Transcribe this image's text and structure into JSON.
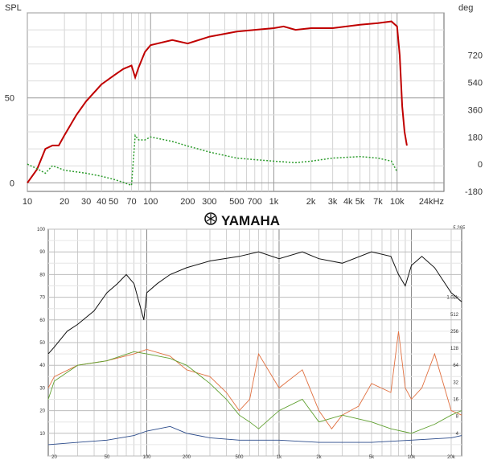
{
  "chart_data": [
    {
      "type": "line",
      "ylabel_left": "SPL",
      "ylabel_right": "deg",
      "x_scale": "log",
      "xlim": [
        10,
        24000
      ],
      "ylim_left": [
        -5,
        100
      ],
      "ylim_right": [
        -180,
        1000
      ],
      "grid": true,
      "x_ticks": [
        10,
        20,
        30,
        40,
        50,
        70,
        100,
        200,
        300,
        500,
        700,
        1000,
        2000,
        3000,
        4000,
        5000,
        7000,
        10000,
        24000
      ],
      "x_tick_labels": [
        "10",
        "20",
        "30",
        "40",
        "50",
        "70",
        "100",
        "200",
        "300",
        "500",
        "700",
        "1k",
        "2k",
        "3k",
        "4k",
        "5k",
        "7k",
        "10k",
        "24kHz"
      ],
      "y_left_ticks": [
        0,
        50
      ],
      "y_left_tick_labels": [
        "0",
        "50"
      ],
      "y_right_ticks": [
        -180,
        0,
        180,
        360,
        540,
        720
      ],
      "y_right_tick_labels": [
        "-180",
        "0",
        "180",
        "360",
        "540",
        "720"
      ],
      "series": [
        {
          "color": "#c00000",
          "axis": "left",
          "x": [
            10,
            12,
            14,
            16,
            18,
            20,
            25,
            30,
            40,
            50,
            60,
            70,
            75,
            80,
            90,
            100,
            150,
            200,
            300,
            500,
            700,
            1000,
            1200,
            1500,
            2000,
            3000,
            5000,
            7000,
            9000,
            10000,
            10500,
            11000,
            11500,
            12000
          ],
          "y": [
            0,
            8,
            20,
            22,
            22,
            28,
            40,
            48,
            58,
            63,
            67,
            69,
            62,
            68,
            77,
            81,
            84,
            82,
            86,
            89,
            90,
            91,
            92,
            90,
            91,
            91,
            93,
            94,
            95,
            92,
            75,
            45,
            30,
            22
          ]
        },
        {
          "color": "#2e9d2e",
          "axis": "right",
          "dash": "2,2",
          "x": [
            10,
            12,
            14,
            16,
            20,
            30,
            40,
            50,
            60,
            70,
            75,
            80,
            90,
            100,
            150,
            200,
            300,
            500,
            700,
            1000,
            1500,
            2000,
            3000,
            5000,
            7000,
            9000,
            10000
          ],
          "y": [
            0,
            -30,
            -60,
            -10,
            -40,
            -60,
            -80,
            -100,
            -120,
            -140,
            190,
            160,
            160,
            180,
            150,
            120,
            80,
            40,
            30,
            20,
            10,
            20,
            40,
            50,
            40,
            20,
            -50
          ]
        }
      ]
    },
    {
      "type": "line",
      "brand": "YAMAHA",
      "model": "5.265",
      "x_scale": "log",
      "xlim": [
        18,
        24000
      ],
      "ylim": [
        0,
        100
      ],
      "grid": true,
      "x_ticks": [
        20,
        50,
        100,
        200,
        500,
        1000,
        2000,
        5000,
        10000,
        20000
      ],
      "x_tick_labels": [
        "20",
        "50",
        "100",
        "200",
        "500",
        "1k",
        "2k",
        "5k",
        "10k",
        "20k"
      ],
      "y_ticks": [
        10,
        20,
        30,
        40,
        50,
        60,
        70,
        80,
        90,
        100
      ],
      "y_tick_labels": [
        "10",
        "20",
        "30",
        "40",
        "50",
        "60",
        "70",
        "80",
        "90",
        "100"
      ],
      "y_right_tick_labels": [
        "1.02k",
        "512",
        "256",
        "128",
        "64",
        "32",
        "16",
        "8",
        "4"
      ],
      "series": [
        {
          "color": "#111111",
          "x": [
            18,
            20,
            25,
            30,
            40,
            50,
            60,
            70,
            80,
            90,
            95,
            100,
            120,
            150,
            200,
            300,
            500,
            700,
            1000,
            1500,
            2000,
            3000,
            5000,
            7000,
            8000,
            9000,
            10000,
            12000,
            15000,
            20000,
            24000
          ],
          "y": [
            45,
            48,
            55,
            58,
            64,
            72,
            76,
            80,
            76,
            65,
            60,
            72,
            76,
            80,
            83,
            86,
            88,
            90,
            87,
            90,
            87,
            85,
            90,
            88,
            80,
            75,
            84,
            88,
            83,
            72,
            68
          ]
        },
        {
          "color": "#e07040",
          "x": [
            18,
            20,
            30,
            50,
            80,
            100,
            150,
            200,
            300,
            400,
            500,
            600,
            700,
            1000,
            1500,
            2000,
            2500,
            3000,
            4000,
            5000,
            7000,
            8000,
            9000,
            10000,
            12000,
            15000,
            20000,
            24000
          ],
          "y": [
            30,
            35,
            40,
            42,
            45,
            47,
            44,
            38,
            35,
            28,
            20,
            25,
            45,
            30,
            38,
            20,
            12,
            18,
            22,
            32,
            28,
            55,
            30,
            25,
            30,
            45,
            20,
            18
          ]
        },
        {
          "color": "#60a030",
          "x": [
            18,
            20,
            30,
            50,
            80,
            100,
            150,
            200,
            300,
            400,
            500,
            600,
            700,
            1000,
            1500,
            2000,
            3000,
            5000,
            7000,
            10000,
            15000,
            20000,
            24000
          ],
          "y": [
            25,
            33,
            40,
            42,
            46,
            45,
            43,
            40,
            32,
            25,
            18,
            15,
            12,
            20,
            25,
            15,
            18,
            15,
            12,
            10,
            14,
            18,
            20
          ]
        },
        {
          "color": "#2a4a8a",
          "x": [
            18,
            30,
            50,
            80,
            100,
            150,
            200,
            300,
            500,
            1000,
            2000,
            5000,
            10000,
            20000,
            24000
          ],
          "y": [
            5,
            6,
            7,
            9,
            11,
            13,
            10,
            8,
            7,
            7,
            6,
            6,
            7,
            8,
            9
          ]
        }
      ]
    }
  ]
}
